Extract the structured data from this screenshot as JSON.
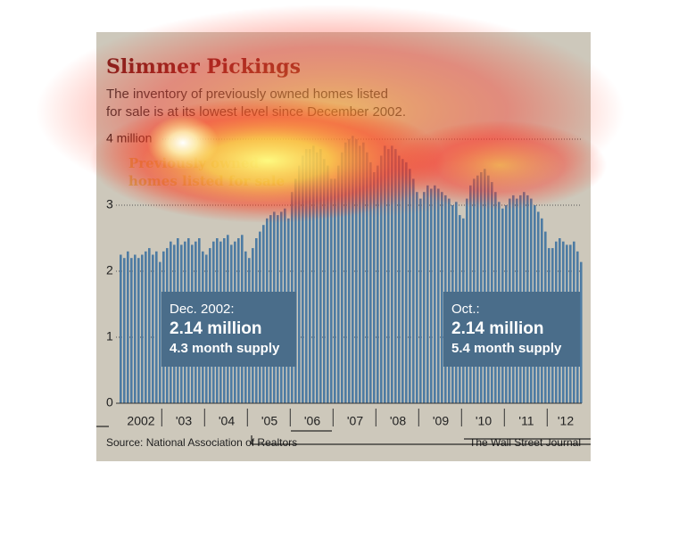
{
  "chart_data": {
    "type": "bar",
    "title": "Slimmer Pickings",
    "subtitle": [
      "The inventory of previously owned homes listed",
      "for sale is at its lowest level since December 2002."
    ],
    "series_label": [
      "Previously owned",
      "homes listed for sale"
    ],
    "color": "#4d7ba3",
    "categories": [
      "2002",
      null,
      null,
      null,
      null,
      null,
      null,
      null,
      null,
      null,
      null,
      null,
      "'03",
      null,
      null,
      null,
      null,
      null,
      null,
      null,
      null,
      null,
      null,
      null,
      "'04",
      null,
      null,
      null,
      null,
      null,
      null,
      null,
      null,
      null,
      null,
      null,
      "'05",
      null,
      null,
      null,
      null,
      null,
      null,
      null,
      null,
      null,
      null,
      null,
      "'06",
      null,
      null,
      null,
      null,
      null,
      null,
      null,
      null,
      null,
      null,
      null,
      "'07",
      null,
      null,
      null,
      null,
      null,
      null,
      null,
      null,
      null,
      null,
      null,
      "'08",
      null,
      null,
      null,
      null,
      null,
      null,
      null,
      null,
      null,
      null,
      null,
      "'09",
      null,
      null,
      null,
      null,
      null,
      null,
      null,
      null,
      null,
      null,
      null,
      "'10",
      null,
      null,
      null,
      null,
      null,
      null,
      null,
      null,
      null,
      null,
      null,
      "'11",
      null,
      null,
      null,
      null,
      null,
      null,
      null,
      null,
      null,
      null,
      null,
      "'12",
      null,
      null,
      null,
      null,
      null,
      null,
      null,
      null,
      null
    ],
    "values": [
      2.25,
      2.2,
      2.3,
      2.2,
      2.25,
      2.2,
      2.25,
      2.3,
      2.35,
      2.25,
      2.3,
      2.14,
      2.3,
      2.35,
      2.45,
      2.4,
      2.5,
      2.4,
      2.45,
      2.5,
      2.4,
      2.45,
      2.5,
      2.3,
      2.25,
      2.35,
      2.45,
      2.5,
      2.45,
      2.5,
      2.55,
      2.4,
      2.45,
      2.5,
      2.55,
      2.3,
      2.2,
      2.35,
      2.5,
      2.6,
      2.7,
      2.8,
      2.85,
      2.9,
      2.85,
      2.9,
      2.95,
      2.8,
      3.2,
      3.4,
      3.6,
      3.75,
      3.85,
      3.85,
      3.9,
      3.8,
      3.85,
      3.7,
      3.6,
      3.4,
      3.4,
      3.6,
      3.8,
      3.95,
      4.0,
      4.05,
      4.0,
      3.9,
      3.95,
      3.8,
      3.65,
      3.5,
      3.6,
      3.75,
      3.9,
      3.85,
      3.9,
      3.85,
      3.75,
      3.7,
      3.65,
      3.55,
      3.4,
      3.2,
      3.1,
      3.2,
      3.3,
      3.25,
      3.3,
      3.25,
      3.2,
      3.15,
      3.1,
      3.0,
      3.05,
      2.85,
      2.8,
      3.1,
      3.3,
      3.4,
      3.45,
      3.5,
      3.55,
      3.45,
      3.35,
      3.2,
      3.05,
      2.95,
      3.0,
      3.1,
      3.15,
      3.1,
      3.15,
      3.2,
      3.15,
      3.1,
      3.0,
      2.9,
      2.8,
      2.6,
      2.35,
      2.35,
      2.45,
      2.5,
      2.45,
      2.4,
      2.4,
      2.45,
      2.3,
      2.14
    ],
    "ylim": [
      0,
      4
    ],
    "yticks": [
      0,
      1,
      2,
      3,
      {
        "value": 4,
        "label": "4 million"
      }
    ],
    "grid": true,
    "annotations": [
      {
        "lines": [
          "Dec. 2002:",
          "2.14 million",
          "4.3 month supply"
        ]
      },
      {
        "lines": [
          "Oct.:",
          "2.14 million",
          "5.4 month supply"
        ]
      }
    ],
    "source": "Source: National Association of Realtors",
    "credit": "The Wall Street Journal"
  }
}
